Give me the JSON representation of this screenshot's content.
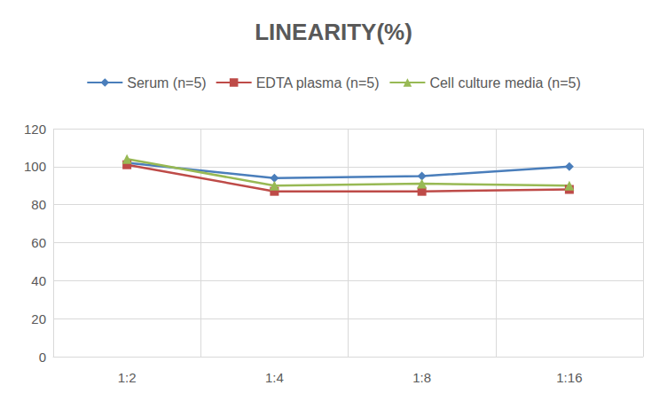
{
  "chart_data": {
    "type": "line",
    "title": "LINEARITY(%)",
    "categories": [
      "1:2",
      "1:4",
      "1:8",
      "1:16"
    ],
    "series": [
      {
        "name": "Serum (n=5)",
        "color": "#4a7ebb",
        "marker": "diamond",
        "values": [
          102,
          94,
          95,
          100
        ]
      },
      {
        "name": "EDTA plasma (n=5)",
        "color": "#be4b48",
        "marker": "square",
        "values": [
          101,
          87,
          87,
          88
        ]
      },
      {
        "name": "Cell culture media (n=5)",
        "color": "#98b954",
        "marker": "triangle",
        "values": [
          104,
          90,
          91,
          90
        ]
      }
    ],
    "ylim": [
      0,
      120
    ],
    "yticks": [
      0,
      20,
      40,
      60,
      80,
      100,
      120
    ],
    "grid": true,
    "legend": "top"
  }
}
